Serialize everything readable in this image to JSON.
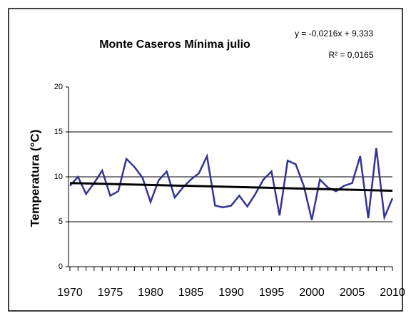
{
  "chart_data": {
    "type": "line",
    "title": "Monte Caseros Mínima julio",
    "annotations": [
      "y = -0,0216x + 9,333",
      "R² = 0,0165"
    ],
    "y_label": "Temperatura (°C)",
    "x": [
      1970,
      1971,
      1972,
      1973,
      1974,
      1975,
      1976,
      1977,
      1978,
      1979,
      1980,
      1981,
      1982,
      1983,
      1984,
      1985,
      1986,
      1987,
      1988,
      1989,
      1990,
      1991,
      1992,
      1993,
      1994,
      1995,
      1996,
      1997,
      1998,
      1999,
      2000,
      2001,
      2002,
      2003,
      2004,
      2005,
      2006,
      2007,
      2008,
      2009,
      2010
    ],
    "series": [
      {
        "color": "#333399",
        "values": [
          9.0,
          10.0,
          8.1,
          9.3,
          10.7,
          7.9,
          8.4,
          12.0,
          11.1,
          9.9,
          7.2,
          9.6,
          10.6,
          7.7,
          8.8,
          9.7,
          10.4,
          12.3,
          6.8,
          6.6,
          6.8,
          7.9,
          6.7,
          8.1,
          9.7,
          10.6,
          5.7,
          11.8,
          11.4,
          9.0,
          5.2,
          9.7,
          8.8,
          8.4,
          9.0,
          9.3,
          12.3,
          5.4,
          13.2,
          5.5,
          7.6
        ]
      }
    ],
    "trendline": {
      "color": "#000000",
      "x": [
        1970,
        2010
      ],
      "values": [
        9.31,
        8.45
      ]
    },
    "xlim": [
      1970,
      2010
    ],
    "xticks": [
      1970,
      1975,
      1980,
      1985,
      1990,
      1995,
      2000,
      2005,
      2010
    ],
    "ylim": [
      0,
      20
    ],
    "yticks": [
      0,
      5,
      10,
      15,
      20
    ],
    "grid": true
  }
}
